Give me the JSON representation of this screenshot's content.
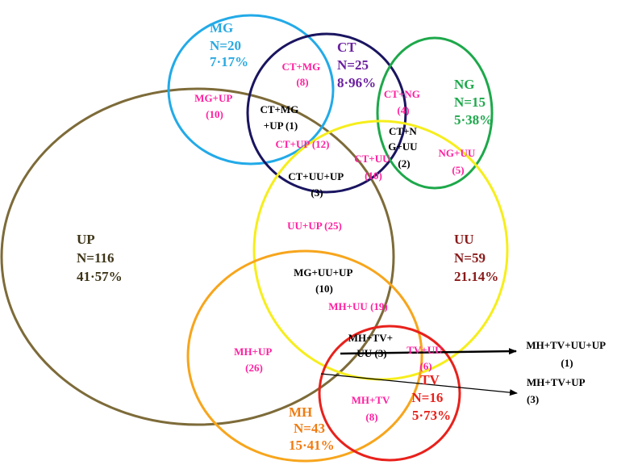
{
  "colors": {
    "MG": "#22aae8",
    "CT": "#1a1560",
    "NG": "#1da84a",
    "UP": "#7d6b39",
    "UU": "#f6ee1c",
    "MH": "#f7a51c",
    "TV": "#e8211c",
    "overlap": "#ff1f9f",
    "MG_text": "#29a9e0",
    "CT_text": "#6a1fa0",
    "NG_text": "#1ea84c",
    "UP_text": "#3d3418",
    "UU_text": "#8a1a1a",
    "MH_text": "#f07c12",
    "TV_text": "#e8211c"
  },
  "sets": {
    "MG": {
      "name": "MG",
      "n": "N=20",
      "pct": "7·17%"
    },
    "CT": {
      "name": "CT",
      "n": "N=25",
      "pct": "8·96%"
    },
    "NG": {
      "name": "NG",
      "n": "N=15",
      "pct": "5·38%"
    },
    "UP": {
      "name": "UP",
      "n": "N=116",
      "pct": "41·57%"
    },
    "UU": {
      "name": "UU",
      "n": "N=59",
      "pct": "21.14%"
    },
    "MH": {
      "name": "MH",
      "n": "N=43",
      "pct": "15·41%"
    },
    "TV": {
      "name": "TV",
      "n": "N=16",
      "pct": "5·73%"
    }
  },
  "overlaps": {
    "ct_mg": {
      "label": "CT+MG",
      "count": "(8)"
    },
    "mg_up": {
      "label": "MG+UP",
      "count": "(10)"
    },
    "ct_ng": {
      "label": "CT+NG",
      "count": "(4)"
    },
    "ct_up": {
      "label": "CT+UP (12)"
    },
    "ct_uu": {
      "label": "CT+UU",
      "count": "(10)"
    },
    "ng_uu": {
      "label": "NG+UU",
      "count": "(5)"
    },
    "uu_up": {
      "label": "UU+UP (25)"
    },
    "mh_uu": {
      "label": "MH+UU (19)"
    },
    "mh_up": {
      "label": "MH+UP",
      "count": "(26)"
    },
    "tv_uu": {
      "label": "TV+UU",
      "count": "(6)"
    },
    "mh_tv": {
      "label": "MH+TV",
      "count": "(8)"
    },
    "ct_mg_up": {
      "line1": "CT+MG",
      "line2": "+UP (1)"
    },
    "ct_ng_uu": {
      "line1": "CT+N",
      "line2": "G+UU",
      "count": "(2)"
    },
    "ct_uu_up": {
      "line1": "CT+UU+UP",
      "count": "(3)"
    },
    "mg_uu_up": {
      "line1": "MG+UU+UP",
      "count": "(10)"
    },
    "mh_tv_uu": {
      "line1": "MH+TV+",
      "line2": "UU (3)"
    },
    "mh_tv_uu_up": {
      "line1": "MH+TV+UU+UP",
      "count": "(1)"
    },
    "mh_tv_up": {
      "line1": "MH+TV+UP",
      "count": "(3)"
    }
  }
}
